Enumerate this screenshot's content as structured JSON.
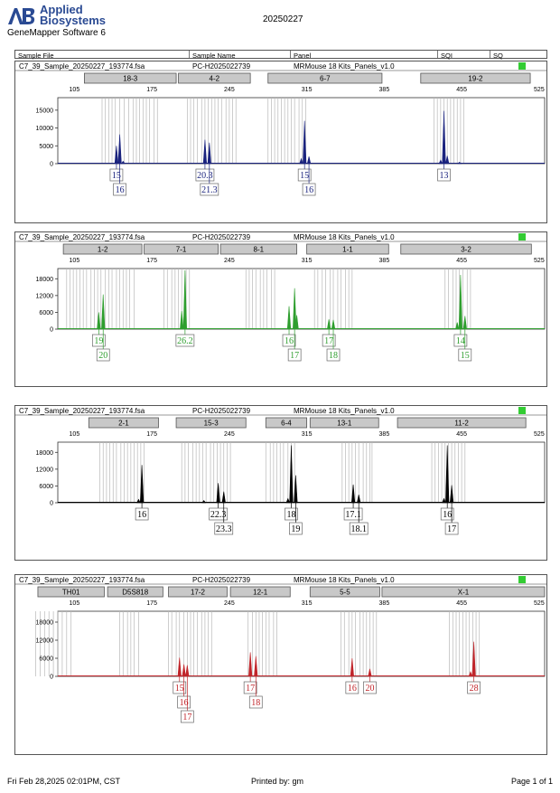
{
  "header": {
    "brand_line1": "Applied",
    "brand_line2": "Biosystems",
    "software": "GeneMapper Software 6",
    "title": "20250227",
    "columns": [
      "Sample File",
      "Sample Name",
      "Panel",
      "SQI",
      "SQ"
    ]
  },
  "footer": {
    "date": "Fri Feb 28,2025 02:01PM, CST",
    "printed_by": "Printed by: gm",
    "page": "Page 1 of 1"
  },
  "chart_data": [
    {
      "type": "line",
      "color": "#1a237e",
      "sample_file": "C7_39_Sample_20250227_193774.fsa",
      "sample_name": "PC-H2025022739",
      "panel": "MRMouse 18 Kits_Panels_v1.0",
      "x_ticks": [
        "105",
        "175",
        "245",
        "315",
        "385",
        "455",
        "525"
      ],
      "xlim": [
        90,
        530
      ],
      "y_ticks": [
        "0",
        "5000",
        "10000",
        "15000"
      ],
      "ylim": [
        0,
        18000
      ],
      "markers": [
        {
          "label": "18-3",
          "start": 114,
          "end": 197
        },
        {
          "label": "4-2",
          "start": 199,
          "end": 264
        },
        {
          "label": "6-7",
          "start": 280,
          "end": 383
        },
        {
          "label": "19-2",
          "start": 418,
          "end": 517
        }
      ],
      "bins": [
        130,
        133,
        136,
        139,
        142,
        146,
        150,
        154,
        158,
        161,
        164,
        167,
        170,
        173,
        177,
        180,
        207,
        210,
        213,
        216,
        220,
        223,
        226,
        229,
        232,
        235,
        238,
        242,
        245,
        248,
        251,
        280,
        283,
        286,
        289,
        292,
        295,
        298,
        301,
        304,
        308,
        311,
        314,
        430,
        433,
        436,
        439,
        442,
        445,
        448,
        451,
        454,
        457
      ],
      "peaks": [
        [
          143,
          5000
        ],
        [
          146,
          8200
        ],
        [
          149,
          700
        ],
        [
          223,
          6700
        ],
        [
          227,
          5900
        ],
        [
          310,
          1400
        ],
        [
          313,
          12000
        ],
        [
          317,
          2000
        ],
        [
          436,
          1000
        ],
        [
          439,
          14800
        ],
        [
          442,
          2200
        ],
        [
          453,
          400
        ]
      ],
      "labels": [
        [
          "15",
          "16"
        ],
        [
          "20.3",
          "21.3"
        ],
        [
          "15",
          "16"
        ],
        [
          "13"
        ]
      ],
      "label_x": [
        [
          143,
          146
        ],
        [
          223,
          227
        ],
        [
          313,
          317
        ],
        [
          439
        ]
      ]
    },
    {
      "type": "line",
      "color": "#2e9e2e",
      "sample_file": "C7_39_Sample_20250227_193774.fsa",
      "sample_name": "PC-H2025022739",
      "panel": "MRMouse 18 Kits_Panels_v1.0",
      "x_ticks": [
        "105",
        "175",
        "245",
        "315",
        "385",
        "455",
        "525"
      ],
      "xlim": [
        90,
        530
      ],
      "y_ticks": [
        "0",
        "6000",
        "12000",
        "18000"
      ],
      "ylim": [
        0,
        21000
      ],
      "markers": [
        {
          "label": "1-2",
          "start": 95,
          "end": 166
        },
        {
          "label": "7-1",
          "start": 168,
          "end": 235
        },
        {
          "label": "8-1",
          "start": 237,
          "end": 306
        },
        {
          "label": "1-1",
          "start": 315,
          "end": 389
        },
        {
          "label": "3-2",
          "start": 400,
          "end": 518
        }
      ],
      "bins": [
        98,
        101,
        104,
        107,
        110,
        113,
        116,
        120,
        123,
        126,
        129,
        133,
        136,
        139,
        143,
        146,
        149,
        152,
        155,
        159,
        186,
        189,
        193,
        196,
        199,
        202,
        206,
        209,
        260,
        263,
        266,
        269,
        273,
        276,
        279,
        283,
        286,
        322,
        325,
        329,
        332,
        336,
        339,
        343,
        346,
        350,
        353,
        356,
        440,
        443,
        447,
        450,
        453,
        456,
        460,
        463
      ],
      "peaks": [
        [
          127,
          6000
        ],
        [
          131,
          12400
        ],
        [
          202,
          6500
        ],
        [
          205,
          21000
        ],
        [
          299,
          8200
        ],
        [
          304,
          14600
        ],
        [
          306,
          5000
        ],
        [
          335,
          3500
        ],
        [
          339,
          3300
        ],
        [
          451,
          2400
        ],
        [
          454,
          19400
        ],
        [
          458,
          4700
        ]
      ],
      "labels": [
        [
          "19",
          "20"
        ],
        [
          "26.2"
        ],
        [
          "16",
          "17"
        ],
        [
          "17",
          "18"
        ],
        [
          "14",
          "15"
        ]
      ],
      "label_x": [
        [
          127,
          131
        ],
        [
          205
        ],
        [
          299,
          304
        ],
        [
          335,
          339
        ],
        [
          454,
          458
        ]
      ]
    },
    {
      "type": "line",
      "color": "#000000",
      "sample_file": "C7_39_Sample_20250227_193774.fsa",
      "sample_name": "PC-H2025022739",
      "panel": "MRMouse 18 Kits_Panels_v1.0",
      "x_ticks": [
        "105",
        "175",
        "245",
        "315",
        "385",
        "455",
        "525"
      ],
      "xlim": [
        90,
        530
      ],
      "y_ticks": [
        "0",
        "6000",
        "12000",
        "18000"
      ],
      "ylim": [
        0,
        21000
      ],
      "markers": [
        {
          "label": "2-1",
          "start": 118,
          "end": 181
        },
        {
          "label": "15-3",
          "start": 197,
          "end": 260
        },
        {
          "label": "6-4",
          "start": 278,
          "end": 315
        },
        {
          "label": "13-1",
          "start": 318,
          "end": 380
        },
        {
          "label": "11-2",
          "start": 397,
          "end": 513
        }
      ],
      "bins": [
        128,
        131,
        134,
        137,
        140,
        143,
        147,
        150,
        153,
        156,
        159,
        162,
        165,
        168,
        202,
        205,
        208,
        212,
        215,
        218,
        221,
        224,
        228,
        231,
        234,
        237,
        240,
        243,
        246,
        278,
        282,
        285,
        288,
        291,
        294,
        298,
        301,
        304,
        347,
        350,
        353,
        356,
        359,
        362,
        366,
        369,
        372,
        374,
        428,
        431,
        434,
        437,
        440,
        443,
        446,
        449,
        452,
        455,
        458
      ],
      "peaks": [
        [
          163,
          1200
        ],
        [
          166,
          13500
        ],
        [
          222,
          800
        ],
        [
          235,
          7000
        ],
        [
          240,
          4000
        ],
        [
          298,
          1500
        ],
        [
          301,
          20500
        ],
        [
          305,
          9800
        ],
        [
          357,
          6500
        ],
        [
          362,
          2900
        ],
        [
          439,
          1500
        ],
        [
          442,
          20500
        ],
        [
          446,
          6300
        ]
      ],
      "labels": [
        [
          "16"
        ],
        [
          "22.3",
          "23.3"
        ],
        [
          "18",
          "19"
        ],
        [
          "17.1",
          "18.1"
        ],
        [
          "16",
          "17"
        ]
      ],
      "label_x": [
        [
          166
        ],
        [
          235,
          240
        ],
        [
          301,
          305
        ],
        [
          357,
          362
        ],
        [
          442,
          446
        ]
      ]
    },
    {
      "type": "line",
      "color": "#c0252a",
      "sample_file": "C7_39_Sample_20250227_193774.fsa",
      "sample_name": "PC-H2025022739",
      "panel": "MRMouse 18 Kits_Panels_v1.0",
      "x_ticks": [
        "105",
        "175",
        "245",
        "315",
        "385",
        "455",
        "525"
      ],
      "xlim": [
        90,
        530
      ],
      "y_ticks": [
        "0",
        "6000",
        "12000",
        "18000"
      ],
      "ylim": [
        0,
        21000
      ],
      "markers": [
        {
          "label": "TH01",
          "start": 72,
          "end": 132
        },
        {
          "label": "D5S818",
          "start": 135,
          "end": 185
        },
        {
          "label": "17-2",
          "start": 190,
          "end": 243
        },
        {
          "label": "12-1",
          "start": 246,
          "end": 300
        },
        {
          "label": "5-5",
          "start": 318,
          "end": 381
        },
        {
          "label": "X-1",
          "start": 383,
          "end": 530
        }
      ],
      "bins": [
        70,
        74,
        78,
        82,
        86,
        90,
        94,
        98,
        102,
        146,
        149,
        153,
        156,
        159,
        163,
        190,
        193,
        197,
        200,
        204,
        207,
        210,
        213,
        216,
        220,
        223,
        226,
        229,
        262,
        266,
        269,
        272,
        275,
        278,
        281,
        285,
        288,
        346,
        349,
        353,
        356,
        359,
        363,
        366,
        369,
        372,
        375,
        378,
        444,
        447,
        450,
        453,
        456,
        459,
        462,
        465,
        468,
        471
      ],
      "peaks": [
        [
          200,
          6200
        ],
        [
          204,
          4000
        ],
        [
          207,
          3700
        ],
        [
          264,
          8000
        ],
        [
          269,
          6700
        ],
        [
          356,
          6000
        ],
        [
          372,
          2500
        ],
        [
          463,
          1500
        ],
        [
          466,
          11500
        ]
      ],
      "labels": [
        [
          "15",
          "16",
          "17"
        ],
        [
          "17",
          "18"
        ],
        [
          "16"
        ],
        [
          "20"
        ],
        [
          "28"
        ]
      ],
      "label_x": [
        [
          200,
          204,
          207
        ],
        [
          264,
          269
        ],
        [
          356
        ],
        [
          372
        ],
        [
          466
        ]
      ]
    }
  ]
}
